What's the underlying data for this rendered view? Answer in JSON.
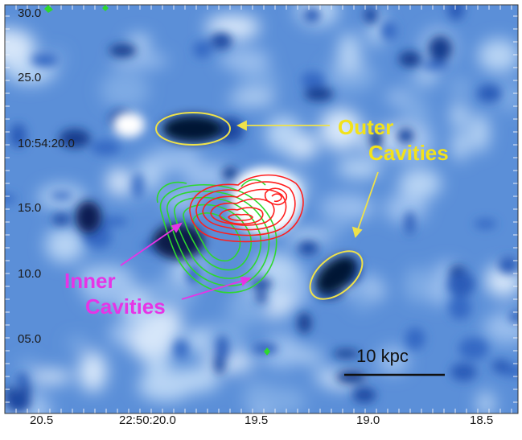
{
  "image": {
    "ra_ticks": [
      "20.5",
      "22:50:20.0",
      "19.5",
      "19.0",
      "18.5"
    ],
    "dec_ticks": [
      "30.0",
      "25.0",
      "10:54:20.0",
      "15.0",
      "10.0",
      "05.0"
    ],
    "annotations": {
      "outer_line1": "Outer",
      "outer_line2": "Cavities",
      "inner_line1": "Inner",
      "inner_line2": "Cavities"
    },
    "scale_bar": {
      "label": "10 kpc"
    },
    "colors": {
      "background": "#5b8fd8",
      "outer_label": "#f2e21a",
      "inner_label": "#e634e6",
      "red_contours": "#ff1e1e",
      "green_contours": "#2ed82e",
      "cavity_ellipses": "#efe24a"
    }
  }
}
